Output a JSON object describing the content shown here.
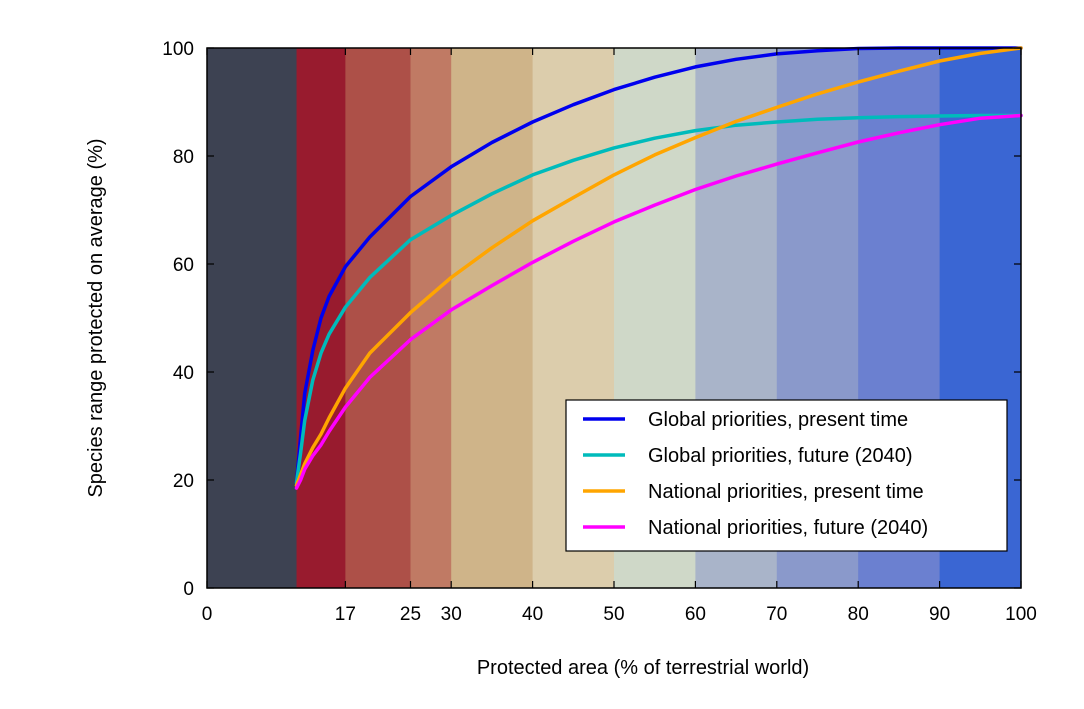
{
  "chart_data": {
    "type": "line",
    "xlabel": "Protected area (% of terrestrial world)",
    "ylabel": "Species range protected on average (%)",
    "xlim": [
      0,
      100
    ],
    "ylim": [
      0,
      100
    ],
    "x_ticks": [
      0,
      17,
      25,
      30,
      40,
      50,
      60,
      70,
      80,
      90,
      100
    ],
    "y_ticks": [
      0,
      20,
      40,
      60,
      80,
      100
    ],
    "grid": false,
    "legend_position": "bottom-right",
    "background_bands": [
      {
        "from": 0,
        "to": 11,
        "color": "#3d4252"
      },
      {
        "from": 11,
        "to": 17,
        "color": "#981b2e"
      },
      {
        "from": 17,
        "to": 25,
        "color": "#ad5048"
      },
      {
        "from": 25,
        "to": 30,
        "color": "#c07a64"
      },
      {
        "from": 30,
        "to": 40,
        "color": "#cfb489"
      },
      {
        "from": 40,
        "to": 50,
        "color": "#dccdac"
      },
      {
        "from": 50,
        "to": 60,
        "color": "#cfd8c8"
      },
      {
        "from": 60,
        "to": 70,
        "color": "#a9b4c9"
      },
      {
        "from": 70,
        "to": 80,
        "color": "#8a99cb"
      },
      {
        "from": 80,
        "to": 90,
        "color": "#6b80d0"
      },
      {
        "from": 90,
        "to": 100,
        "color": "#3a66d3"
      }
    ],
    "x": [
      11,
      11.5,
      12,
      13,
      14,
      15,
      17,
      20,
      25,
      30,
      35,
      40,
      45,
      50,
      55,
      60,
      65,
      70,
      75,
      80,
      85,
      90,
      95,
      100
    ],
    "series": [
      {
        "name": "Global priorities, present time",
        "color": "#0000ee",
        "values": [
          19.5,
          28,
          36,
          44,
          50,
          54,
          59.5,
          65,
          72.5,
          78,
          82.5,
          86.3,
          89.5,
          92.3,
          94.6,
          96.5,
          97.9,
          98.9,
          99.5,
          99.9,
          100,
          100,
          100,
          100
        ]
      },
      {
        "name": "Global priorities, future (2040)",
        "color": "#00bbbb",
        "values": [
          19.5,
          25,
          31,
          38.5,
          43.5,
          47,
          52,
          57.5,
          64.5,
          69,
          73,
          76.5,
          79.2,
          81.5,
          83.3,
          84.7,
          85.7,
          86.3,
          86.8,
          87.1,
          87.3,
          87.4,
          87.5,
          87.5
        ]
      },
      {
        "name": "National priorities, present time",
        "color": "#ffa500",
        "values": [
          19,
          21,
          23,
          26,
          28.5,
          31.5,
          37,
          43.5,
          51,
          57.5,
          63,
          68,
          72.3,
          76.5,
          80.2,
          83.4,
          86.4,
          89,
          91.5,
          93.7,
          95.7,
          97.6,
          99,
          100
        ]
      },
      {
        "name": "National priorities, future (2040)",
        "color": "#ff00ff",
        "values": [
          18.5,
          20,
          22,
          24.5,
          26.5,
          29,
          33.5,
          39,
          46,
          51.5,
          56,
          60.3,
          64.2,
          67.8,
          70.9,
          73.8,
          76.3,
          78.5,
          80.6,
          82.6,
          84.3,
          85.8,
          87,
          87.5
        ]
      }
    ]
  }
}
